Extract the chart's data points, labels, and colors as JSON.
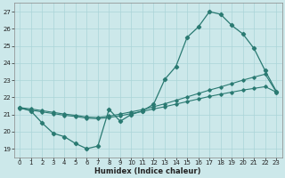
{
  "xlabel": "Humidex (Indice chaleur)",
  "background_color": "#cce8ea",
  "grid_color": "#aad4d8",
  "line_color": "#2a7a72",
  "xlim": [
    -0.5,
    23.5
  ],
  "ylim": [
    18.5,
    27.5
  ],
  "xticks": [
    0,
    1,
    2,
    3,
    4,
    5,
    6,
    7,
    8,
    9,
    10,
    11,
    12,
    13,
    14,
    15,
    16,
    17,
    18,
    19,
    20,
    21,
    22,
    23
  ],
  "yticks": [
    19,
    20,
    21,
    22,
    23,
    24,
    25,
    26,
    27
  ],
  "curve1_x": [
    0,
    1,
    2,
    3,
    4,
    5,
    6,
    7,
    8,
    9,
    10,
    11,
    12,
    13,
    14,
    15,
    16,
    17,
    18,
    19,
    20,
    21,
    22,
    23
  ],
  "curve1_y": [
    21.4,
    21.2,
    20.5,
    19.9,
    19.7,
    19.3,
    19.0,
    19.15,
    21.3,
    20.6,
    21.0,
    21.2,
    21.6,
    23.05,
    23.8,
    25.5,
    26.1,
    27.0,
    26.85,
    26.2,
    25.7,
    24.85,
    23.55,
    22.35
  ],
  "curve2_x": [
    0,
    1,
    2,
    3,
    4,
    5,
    6,
    7,
    8,
    9,
    10,
    11,
    12,
    13,
    14,
    15,
    16,
    17,
    18,
    19,
    20,
    21,
    22,
    23
  ],
  "curve2_y": [
    21.35,
    21.25,
    21.15,
    21.05,
    20.95,
    20.88,
    20.78,
    20.75,
    20.82,
    20.92,
    21.05,
    21.18,
    21.32,
    21.45,
    21.6,
    21.75,
    21.9,
    22.05,
    22.18,
    22.3,
    22.42,
    22.52,
    22.62,
    22.3
  ],
  "curve3_x": [
    0,
    1,
    2,
    3,
    4,
    5,
    6,
    7,
    8,
    9,
    10,
    11,
    12,
    13,
    14,
    15,
    16,
    17,
    18,
    19,
    20,
    21,
    22,
    23
  ],
  "curve3_y": [
    21.4,
    21.32,
    21.22,
    21.12,
    21.02,
    20.95,
    20.85,
    20.82,
    20.9,
    21.02,
    21.15,
    21.28,
    21.45,
    21.62,
    21.82,
    22.02,
    22.22,
    22.42,
    22.6,
    22.8,
    23.0,
    23.18,
    23.35,
    22.3
  ]
}
